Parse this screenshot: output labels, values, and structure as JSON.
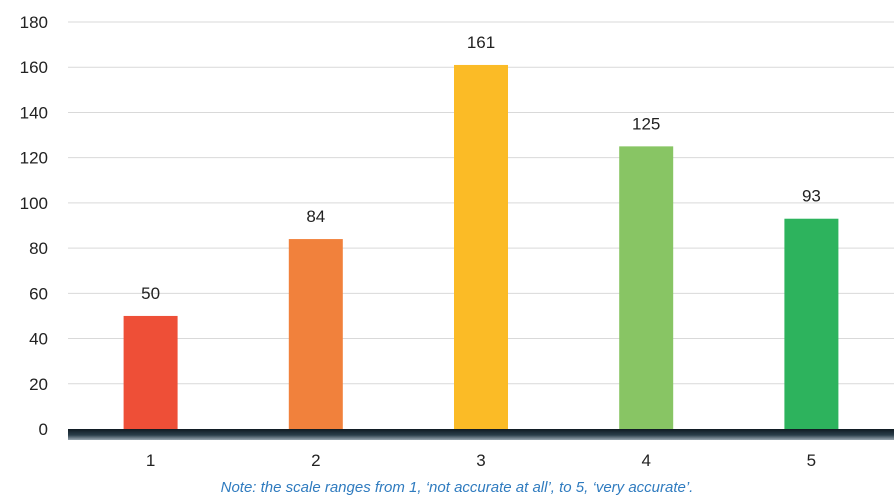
{
  "chart_data": {
    "type": "bar",
    "categories": [
      "1",
      "2",
      "3",
      "4",
      "5"
    ],
    "values": [
      50,
      84,
      161,
      125,
      93
    ],
    "ylim": [
      0,
      180
    ],
    "yticks": [
      0,
      20,
      40,
      60,
      80,
      100,
      120,
      140,
      160,
      180
    ],
    "grid": true,
    "bar_colors": [
      "#ee4f37",
      "#f1813c",
      "#fbbb26",
      "#88c564",
      "#2db35d"
    ],
    "baseline_color": "#1f2f3a",
    "title": "",
    "xlabel": "",
    "ylabel": ""
  },
  "note": {
    "text": "Note: the scale ranges from 1, ‘not accurate at all’, to 5, ‘very accurate’.",
    "color": "#2f7bbf"
  }
}
